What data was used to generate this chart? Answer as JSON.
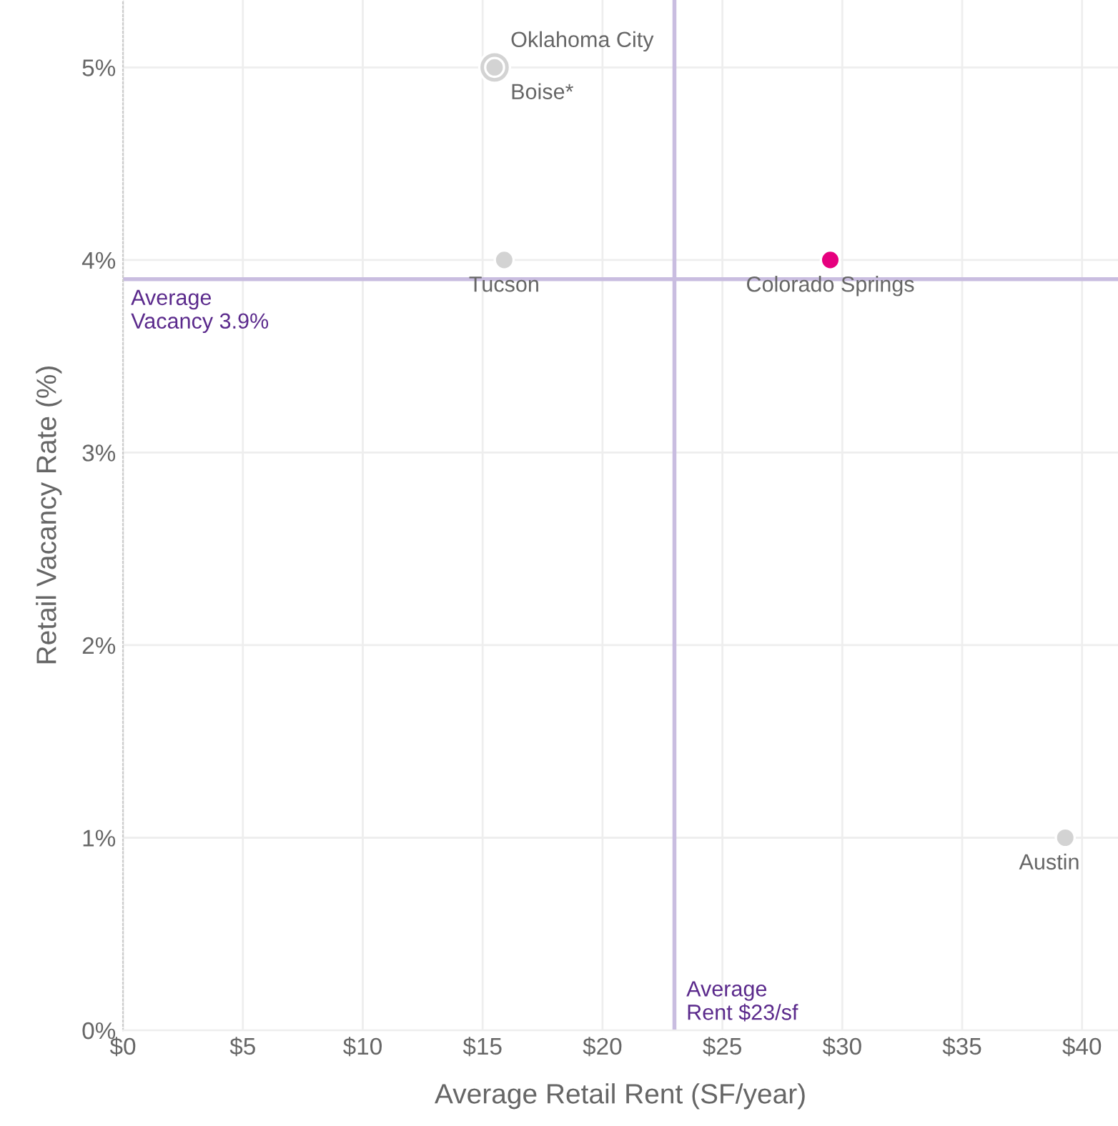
{
  "chart_data": {
    "type": "scatter",
    "xlabel": "Average Retail Rent (SF/year)",
    "ylabel": "Retail Vacancy Rate (%)",
    "series": [
      {
        "name": "Oklahoma City",
        "color": "#d3d3d3",
        "x": [
          15.5
        ],
        "values": [
          5
        ]
      },
      {
        "name": "Boise*",
        "color": "#d3d3d3",
        "x": [
          15.5
        ],
        "values": [
          5
        ]
      },
      {
        "name": "Tucson",
        "color": "#d3d3d3",
        "x": [
          15.9
        ],
        "values": [
          4
        ]
      },
      {
        "name": "Colorado Springs",
        "color": "#e6007e",
        "x": [
          29.5
        ],
        "values": [
          4
        ]
      },
      {
        "name": "Austin",
        "color": "#d3d3d3",
        "x": [
          39.3
        ],
        "values": [
          1
        ]
      }
    ],
    "xlim": [
      0,
      41.5
    ],
    "xticks": [
      {
        "value": 0,
        "label": "$0"
      },
      {
        "value": 5,
        "label": "$5"
      },
      {
        "value": 10,
        "label": "$10"
      },
      {
        "value": 15,
        "label": "$15"
      },
      {
        "value": 20,
        "label": "$20"
      },
      {
        "value": 25,
        "label": "$25"
      },
      {
        "value": 30,
        "label": "$30"
      },
      {
        "value": 35,
        "label": "$35"
      },
      {
        "value": 40,
        "label": "$40"
      }
    ],
    "ylim": [
      0,
      5.35
    ],
    "yticks": [
      {
        "value": 0,
        "label": "0%"
      },
      {
        "value": 1,
        "label": "1%"
      },
      {
        "value": 2,
        "label": "2%"
      },
      {
        "value": 3,
        "label": "3%"
      },
      {
        "value": 4,
        "label": "4%"
      },
      {
        "value": 5,
        "label": "5%"
      }
    ],
    "ref_lines": [
      {
        "axis": "y",
        "value": 3.9,
        "label": "Average\nVacancy 3.9%",
        "color": "#c9bde0"
      },
      {
        "axis": "x",
        "value": 23,
        "label": "Average\nRent $23/sf",
        "color": "#c9bde0"
      }
    ],
    "grid": true,
    "marker": "circle",
    "legend": false
  }
}
